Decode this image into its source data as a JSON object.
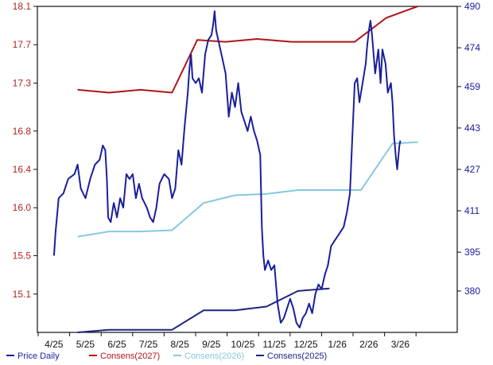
{
  "chart_data": {
    "type": "line",
    "title": "",
    "xlabel": "",
    "ylabel_left": "",
    "ylabel_right": "",
    "grid": false,
    "legend_position": "bottom",
    "colors": {
      "left_axis_text": "#b22222",
      "right_axis_text": "#1a1aa0",
      "price": "#1a1f9c",
      "consens_2027": "#b01515",
      "consens_2026": "#85c8dd",
      "consens_2025": "#1d2380"
    },
    "y_left": {
      "min": 14.7,
      "max": 18.1,
      "ticks": [
        "18.1",
        "17.7",
        "17.3",
        "16.8",
        "16.4",
        "16.0",
        "15.5",
        "15.1"
      ]
    },
    "y_right": {
      "min": 364,
      "max": 490,
      "ticks": [
        "490",
        "474",
        "459",
        "443",
        "427",
        "411",
        "395",
        "380"
      ]
    },
    "x_ticks": [
      "4/25",
      "5/25",
      "6/25",
      "7/25",
      "8/25",
      "9/25",
      "10/25",
      "11/25",
      "12/25",
      "1/26",
      "2/26",
      "3/26"
    ],
    "series": [
      {
        "name": "Price Daily",
        "axis": "left",
        "points": [
          [
            0.25,
            15.5
          ],
          [
            0.3,
            15.75
          ],
          [
            0.4,
            16.1
          ],
          [
            0.55,
            16.15
          ],
          [
            0.7,
            16.3
          ],
          [
            0.9,
            16.35
          ],
          [
            1.0,
            16.45
          ],
          [
            1.1,
            16.2
          ],
          [
            1.25,
            16.1
          ],
          [
            1.4,
            16.3
          ],
          [
            1.55,
            16.45
          ],
          [
            1.7,
            16.5
          ],
          [
            1.8,
            16.65
          ],
          [
            1.88,
            16.6
          ],
          [
            1.93,
            16.3
          ],
          [
            1.97,
            15.9
          ],
          [
            2.05,
            15.85
          ],
          [
            2.15,
            16.05
          ],
          [
            2.25,
            15.9
          ],
          [
            2.35,
            16.1
          ],
          [
            2.45,
            16.0
          ],
          [
            2.55,
            16.35
          ],
          [
            2.65,
            16.3
          ],
          [
            2.75,
            16.35
          ],
          [
            2.85,
            16.1
          ],
          [
            2.95,
            16.25
          ],
          [
            3.05,
            16.1
          ],
          [
            3.2,
            16.0
          ],
          [
            3.3,
            15.9
          ],
          [
            3.4,
            15.85
          ],
          [
            3.5,
            16.0
          ],
          [
            3.6,
            16.25
          ],
          [
            3.75,
            16.35
          ],
          [
            3.9,
            16.3
          ],
          [
            4.0,
            16.1
          ],
          [
            4.1,
            16.2
          ],
          [
            4.2,
            16.6
          ],
          [
            4.3,
            16.45
          ],
          [
            4.4,
            16.85
          ],
          [
            4.5,
            17.2
          ],
          [
            4.55,
            17.45
          ],
          [
            4.6,
            17.6
          ],
          [
            4.65,
            17.35
          ],
          [
            4.75,
            17.3
          ],
          [
            4.85,
            17.35
          ],
          [
            4.95,
            17.2
          ],
          [
            5.05,
            17.6
          ],
          [
            5.15,
            17.75
          ],
          [
            5.25,
            17.8
          ],
          [
            5.3,
            17.9
          ],
          [
            5.35,
            18.05
          ],
          [
            5.4,
            17.85
          ],
          [
            5.5,
            17.7
          ],
          [
            5.6,
            17.55
          ],
          [
            5.7,
            17.4
          ],
          [
            5.8,
            16.95
          ],
          [
            5.9,
            17.2
          ],
          [
            6.0,
            17.05
          ],
          [
            6.1,
            17.3
          ],
          [
            6.2,
            17.0
          ],
          [
            6.3,
            16.9
          ],
          [
            6.4,
            16.8
          ],
          [
            6.5,
            16.95
          ],
          [
            6.6,
            16.8
          ],
          [
            6.7,
            16.7
          ],
          [
            6.8,
            16.55
          ],
          [
            6.85,
            15.8
          ],
          [
            6.9,
            15.5
          ],
          [
            6.95,
            15.35
          ],
          [
            7.05,
            15.45
          ],
          [
            7.15,
            15.35
          ],
          [
            7.25,
            15.4
          ],
          [
            7.35,
            15.0
          ],
          [
            7.45,
            14.8
          ],
          [
            7.55,
            14.85
          ],
          [
            7.65,
            14.95
          ],
          [
            7.75,
            15.05
          ],
          [
            7.85,
            14.95
          ],
          [
            7.95,
            14.8
          ],
          [
            8.05,
            14.75
          ],
          [
            8.15,
            14.85
          ],
          [
            8.25,
            14.9
          ],
          [
            8.35,
            15.0
          ],
          [
            8.45,
            14.9
          ],
          [
            8.55,
            15.1
          ],
          [
            8.65,
            15.2
          ],
          [
            8.75,
            15.15
          ],
          [
            8.85,
            15.3
          ],
          [
            8.95,
            15.4
          ],
          [
            9.05,
            15.6
          ],
          [
            9.15,
            15.65
          ],
          [
            9.25,
            15.7
          ],
          [
            9.35,
            15.75
          ],
          [
            9.45,
            15.8
          ],
          [
            9.55,
            15.95
          ],
          [
            9.65,
            16.15
          ],
          [
            9.72,
            16.7
          ],
          [
            9.8,
            17.3
          ],
          [
            9.88,
            17.35
          ],
          [
            9.95,
            17.1
          ],
          [
            10.05,
            17.3
          ],
          [
            10.15,
            17.5
          ],
          [
            10.2,
            17.7
          ],
          [
            10.25,
            17.85
          ],
          [
            10.3,
            17.95
          ],
          [
            10.35,
            17.8
          ],
          [
            10.45,
            17.4
          ],
          [
            10.55,
            17.65
          ],
          [
            10.62,
            17.3
          ],
          [
            10.68,
            17.65
          ],
          [
            10.78,
            17.5
          ],
          [
            10.85,
            17.2
          ],
          [
            10.95,
            17.3
          ],
          [
            11.0,
            17.1
          ],
          [
            11.05,
            16.75
          ],
          [
            11.1,
            16.55
          ],
          [
            11.15,
            16.4
          ],
          [
            11.22,
            16.65
          ],
          [
            11.25,
            16.7
          ]
        ]
      },
      {
        "name": "Consens(2027)",
        "axis": "left",
        "points": [
          [
            1.0,
            17.23
          ],
          [
            2.0,
            17.2
          ],
          [
            3.0,
            17.23
          ],
          [
            4.0,
            17.2
          ],
          [
            4.8,
            17.75
          ],
          [
            5.7,
            17.73
          ],
          [
            6.7,
            17.76
          ],
          [
            7.8,
            17.73
          ],
          [
            8.9,
            17.73
          ],
          [
            9.8,
            17.73
          ],
          [
            10.8,
            17.98
          ],
          [
            11.8,
            18.1
          ]
        ]
      },
      {
        "name": "Consens(2026)",
        "axis": "right",
        "points": [
          [
            1.0,
            401
          ],
          [
            2.0,
            403
          ],
          [
            3.0,
            403
          ],
          [
            4.0,
            403.5
          ],
          [
            5.0,
            414
          ],
          [
            6.0,
            417
          ],
          [
            7.0,
            417.5
          ],
          [
            8.0,
            419
          ],
          [
            9.0,
            419
          ],
          [
            10.0,
            419
          ],
          [
            11.0,
            437
          ],
          [
            11.8,
            437.5
          ]
        ]
      },
      {
        "name": "Consens(2025)",
        "axis": "right",
        "points": [
          [
            1.0,
            364
          ],
          [
            2.0,
            365
          ],
          [
            3.0,
            365
          ],
          [
            4.0,
            365
          ],
          [
            5.0,
            372.5
          ],
          [
            6.0,
            372.5
          ],
          [
            7.0,
            374
          ],
          [
            8.0,
            380
          ],
          [
            9.0,
            381
          ]
        ]
      }
    ]
  }
}
